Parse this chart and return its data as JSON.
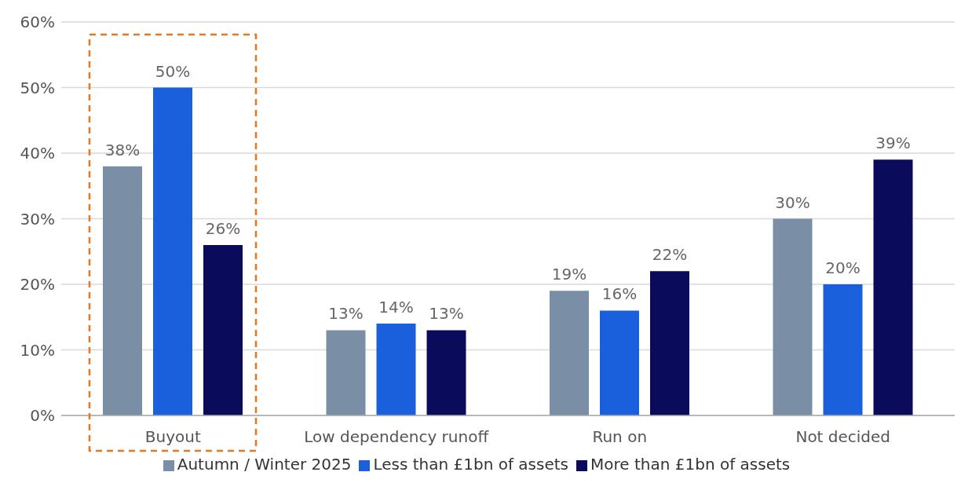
{
  "chart_data": {
    "type": "bar",
    "categories": [
      "Buyout",
      "Low dependency runoff",
      "Run on",
      "Not decided"
    ],
    "series": [
      {
        "name": "Autumn / Winter 2025",
        "color": "#7a8fa6",
        "values": [
          38,
          13,
          19,
          30
        ],
        "value_labels": [
          "38%",
          "13%",
          "19%",
          "30%"
        ]
      },
      {
        "name": "Less than £1bn of assets",
        "color": "#1a5fdb",
        "values": [
          50,
          14,
          16,
          20
        ],
        "value_labels": [
          "50%",
          "14%",
          "16%",
          "20%"
        ]
      },
      {
        "name": "More than £1bn of assets",
        "color": "#0b0b5c",
        "values": [
          26,
          13,
          22,
          39
        ],
        "value_labels": [
          "26%",
          "13%",
          "22%",
          "39%"
        ]
      }
    ],
    "ylim": [
      0,
      60
    ],
    "yticks": [
      {
        "value": 0,
        "label": "0%"
      },
      {
        "value": 10,
        "label": "10%"
      },
      {
        "value": 20,
        "label": "20%"
      },
      {
        "value": 30,
        "label": "30%"
      },
      {
        "value": 40,
        "label": "40%"
      },
      {
        "value": 50,
        "label": "50%"
      },
      {
        "value": 60,
        "label": "60%"
      }
    ],
    "grid": "y",
    "legend": "bottom"
  }
}
